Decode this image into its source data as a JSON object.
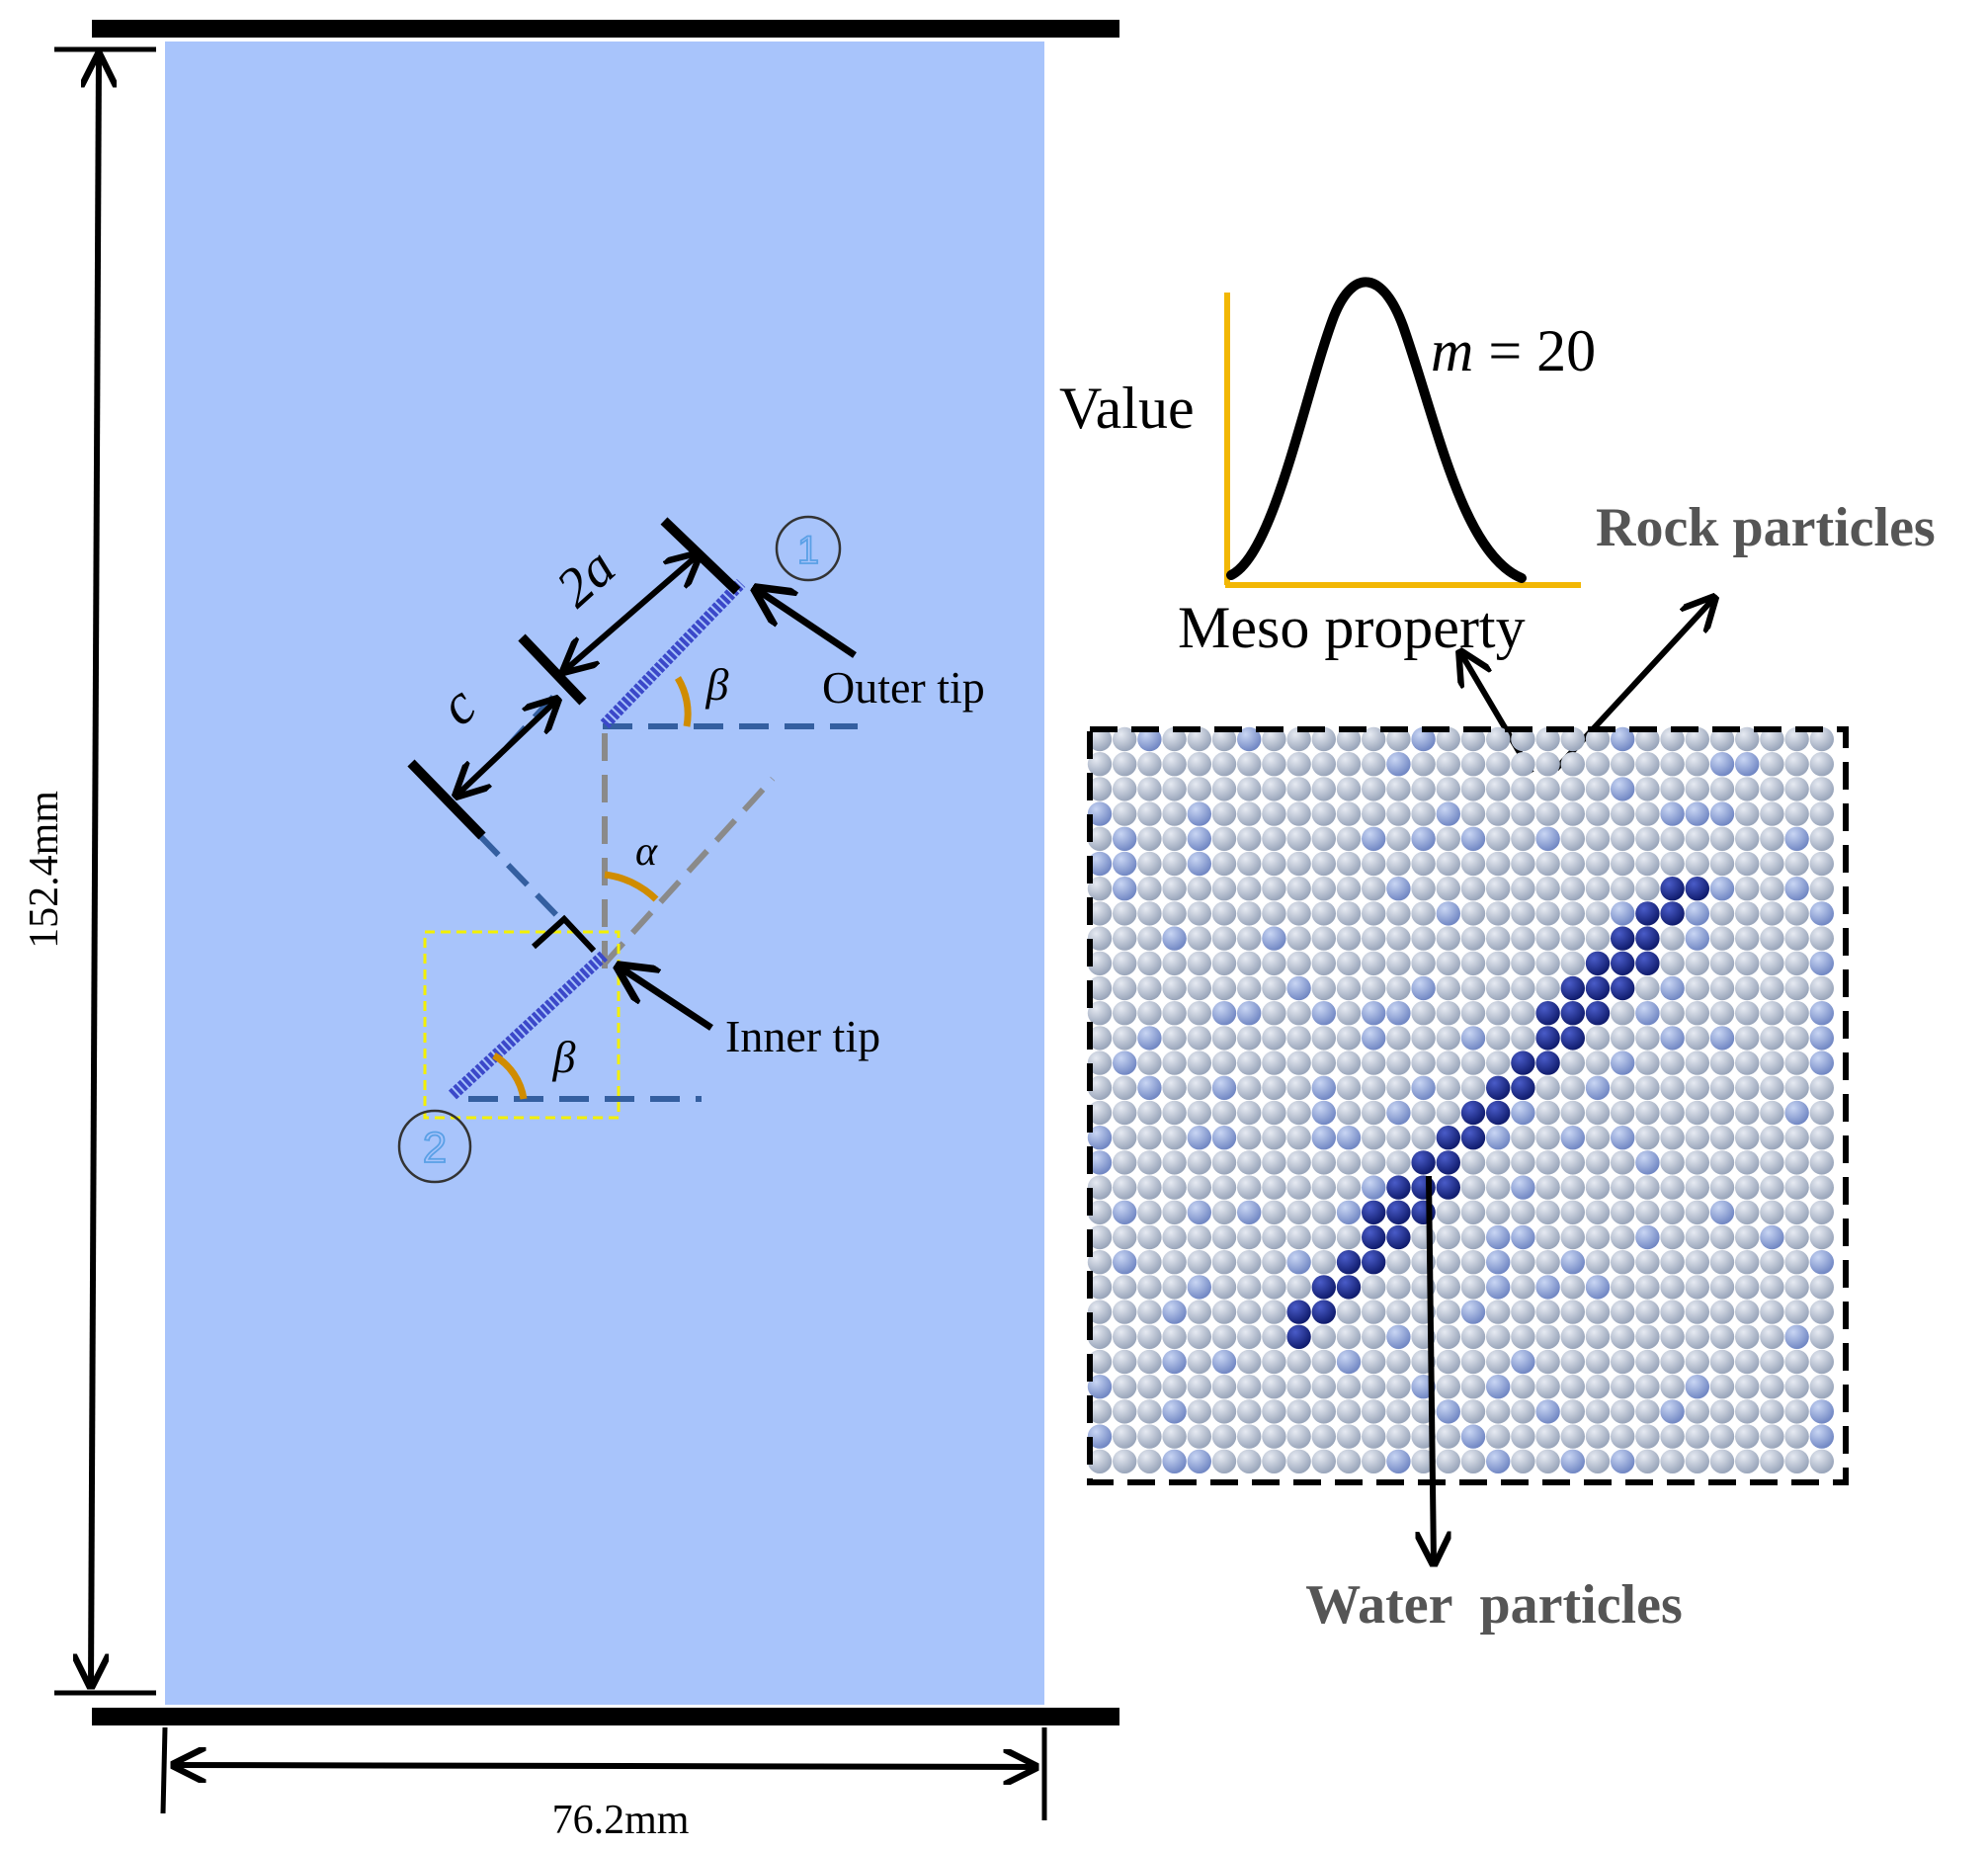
{
  "labels": {
    "height_dim": "152.4mm",
    "width_dim": "76.2mm",
    "crack_length": "2a",
    "spacing": "c",
    "angle_beta": "β",
    "angle_alpha": "α",
    "flaw1_marker": "1",
    "flaw2_marker": "2",
    "outer_tip": "Outer tip",
    "inner_tip": "Inner tip",
    "value_axis": "Value",
    "meso_axis": "Meso property",
    "m_symbol": "m",
    "m_equals": " = 20",
    "rock_particles": "Rock particles",
    "water_particles": "Water  particles"
  },
  "colors": {
    "specimen": "#a8c4fb",
    "flaw": "#3b48c9",
    "angle_arc": "#d08c00",
    "axis": "#f2b705",
    "dashed_blue": "#345fa0",
    "dashed_gray": "#8a8a8a",
    "rock_particle": "#b8c2d4",
    "rock_particle_alt": "#8ea4d8",
    "water_particle": "#1c2a8c",
    "highlight_box": "#f3f000"
  },
  "icons": {
    "flaw1_marker": "circle-1-icon",
    "flaw2_marker": "circle-2-icon"
  }
}
